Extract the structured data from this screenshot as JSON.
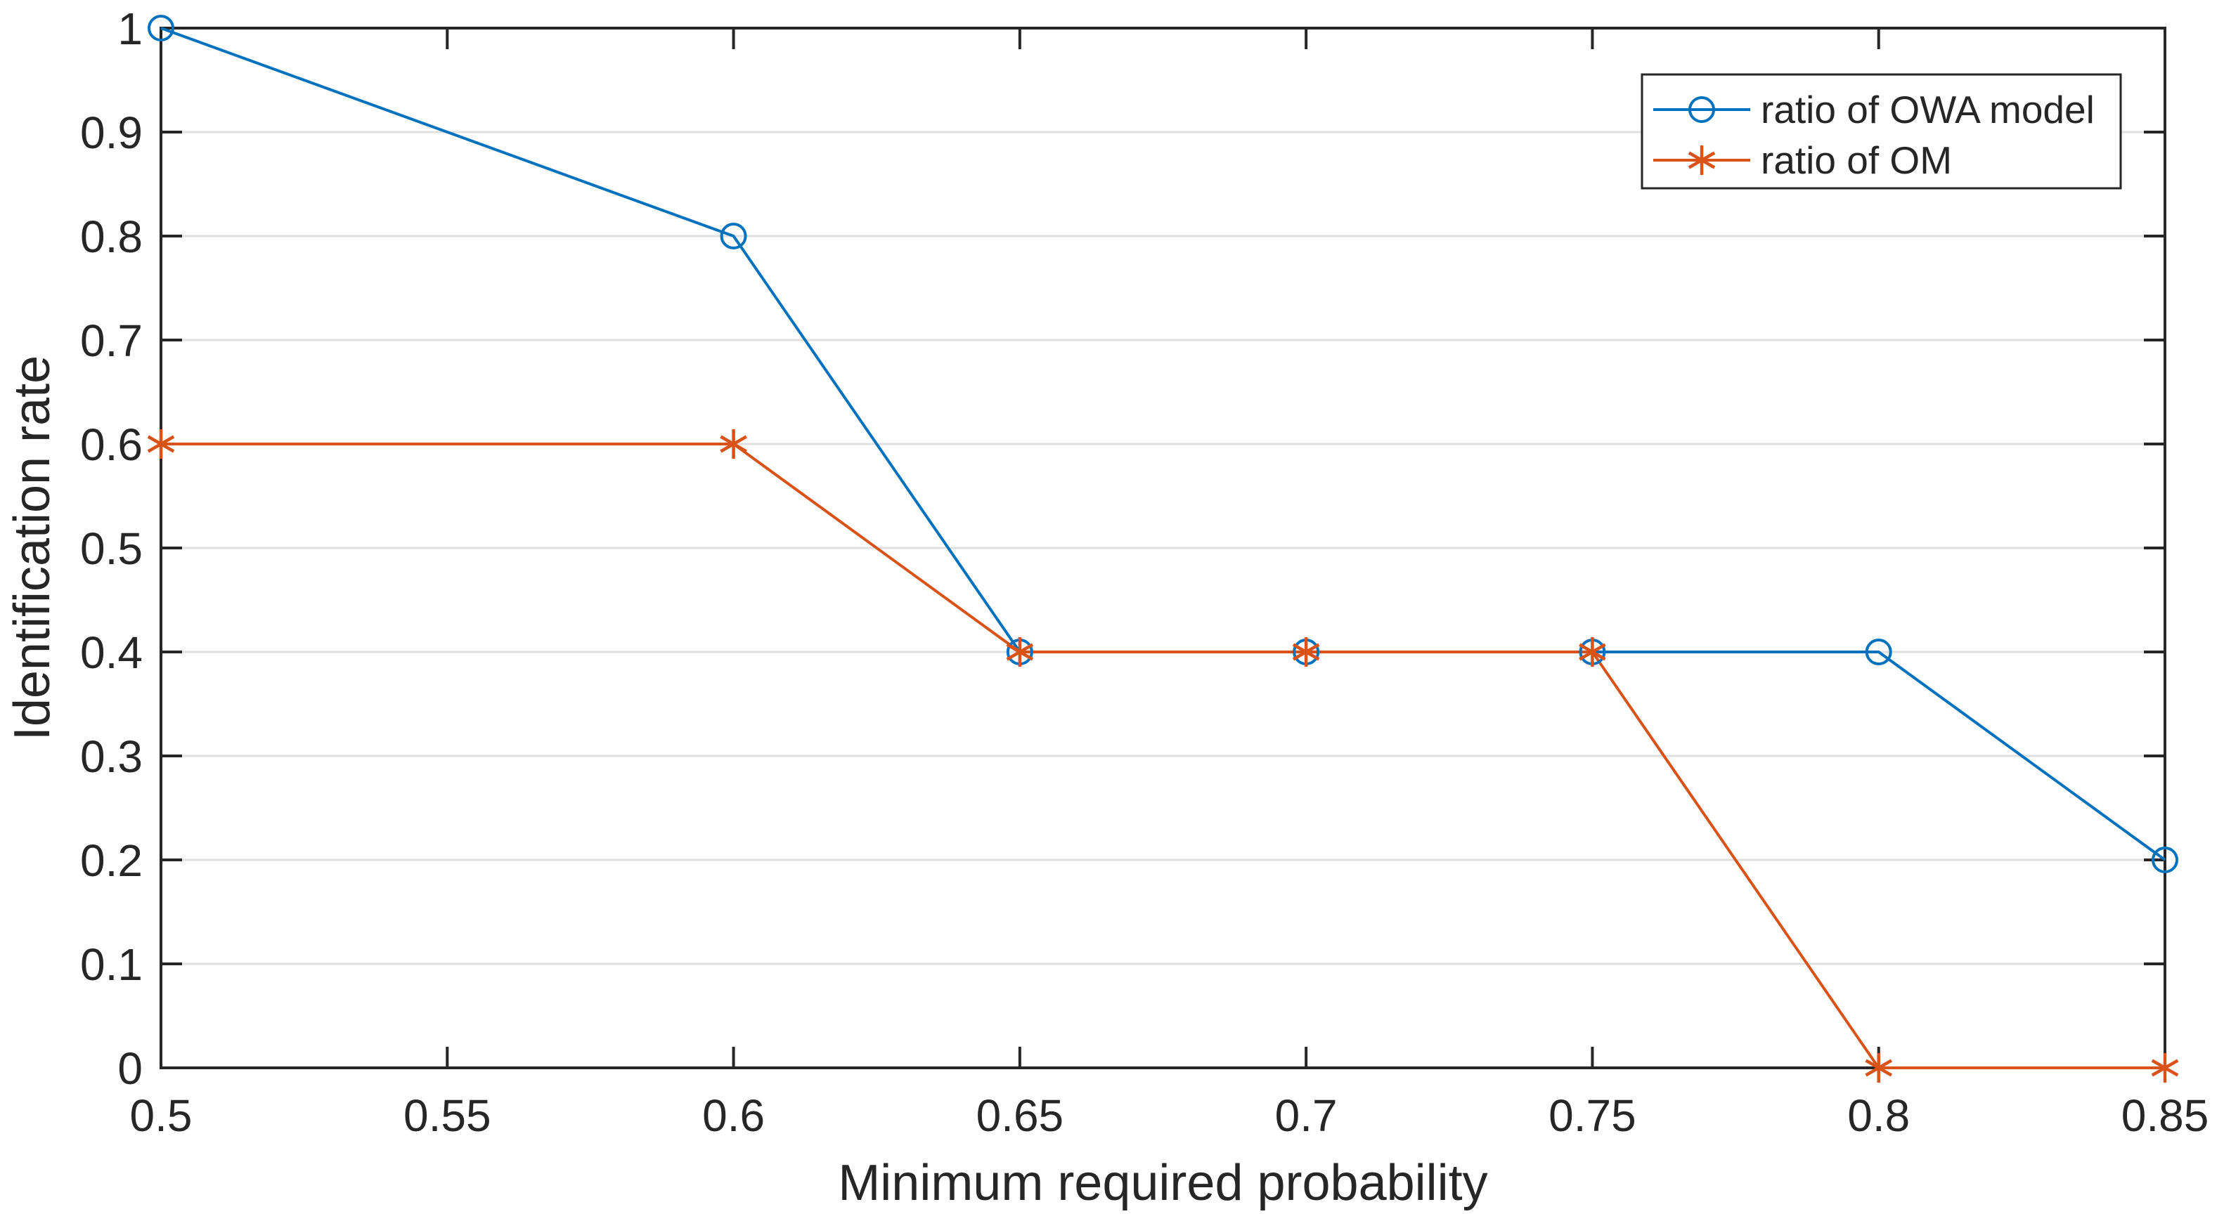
{
  "figure": {
    "background": "#ffffff"
  },
  "chart_data": {
    "type": "line",
    "title": "",
    "xlabel": "Minimum required probability",
    "ylabel": "Identification rate",
    "xlim": [
      0.5,
      0.85
    ],
    "ylim": [
      0,
      1
    ],
    "xticks": {
      "values": [
        0.5,
        0.55,
        0.6,
        0.65,
        0.7,
        0.75,
        0.8,
        0.85
      ],
      "labels": [
        "0.5",
        "0.55",
        "0.6",
        "0.65",
        "0.7",
        "0.75",
        "0.8",
        "0.85"
      ]
    },
    "yticks": {
      "values": [
        0,
        0.1,
        0.2,
        0.3,
        0.4,
        0.5,
        0.6,
        0.7,
        0.8,
        0.9,
        1
      ],
      "labels": [
        "0",
        "0.1",
        "0.2",
        "0.3",
        "0.4",
        "0.5",
        "0.6",
        "0.7",
        "0.8",
        "0.9",
        "1"
      ]
    },
    "grid": {
      "horizontal": true,
      "vertical": false,
      "color": "#e0e0e0"
    },
    "axis_color": "#262626",
    "tick_label_color": "#262626",
    "legend": {
      "position": "top-right",
      "border_color": "#262626",
      "background": "#ffffff"
    },
    "x": [
      0.5,
      0.6,
      0.65,
      0.7,
      0.75,
      0.8,
      0.85
    ],
    "series": [
      {
        "name": "ratio of OWA model",
        "color": "#0072BD",
        "marker": "circle",
        "values": [
          1,
          0.8,
          0.4,
          0.4,
          0.4,
          0.4,
          0.2
        ]
      },
      {
        "name": "ratio of OM",
        "color": "#D95319",
        "marker": "asterisk",
        "values": [
          0.6,
          0.6,
          0.4,
          0.4,
          0.4,
          0,
          0
        ]
      }
    ]
  }
}
